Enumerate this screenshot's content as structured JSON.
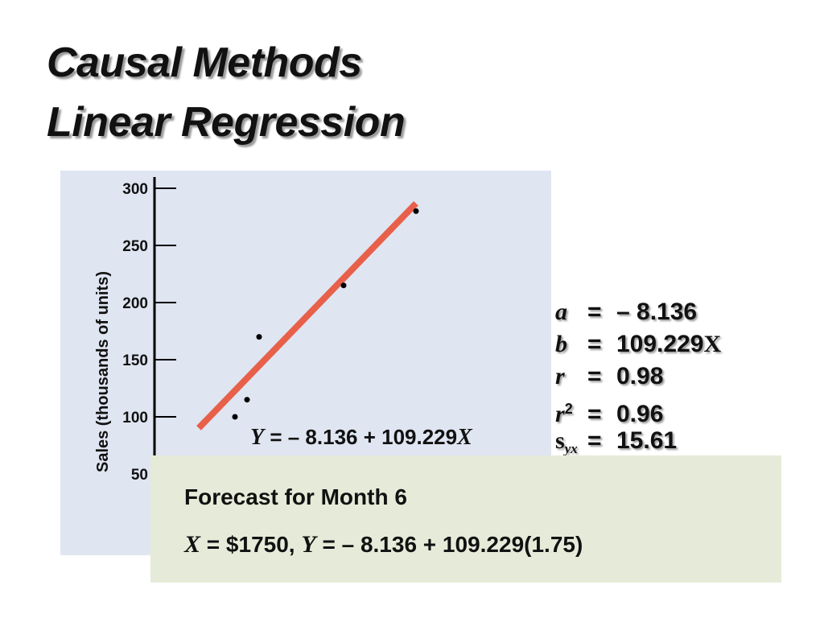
{
  "slide": {
    "title_line1": "Causal Methods",
    "title_line2": "Linear Regression"
  },
  "chart_data": {
    "type": "scatter",
    "ylabel": "Sales (thousands of units)",
    "yticks": [
      300,
      250,
      200,
      150,
      100,
      50
    ],
    "ylim": [
      50,
      300
    ],
    "points": [
      {
        "x": 1.2,
        "y": 100
      },
      {
        "x": 1.3,
        "y": 115
      },
      {
        "x": 1.4,
        "y": 170
      },
      {
        "x": 2.1,
        "y": 215
      },
      {
        "x": 2.7,
        "y": 280
      }
    ],
    "regression": {
      "intercept": -8.136,
      "slope": 109.229,
      "x_range": [
        0.9,
        2.7
      ]
    },
    "equation": {
      "y_var": "Y",
      "rhs": " = – 8.136 + 109.229",
      "x_var": "X"
    },
    "colors": {
      "panel": "#dfe5f1",
      "line": "#e8604a",
      "axis": "#000000"
    },
    "grid": false
  },
  "stats": {
    "a": {
      "sym": "a",
      "eq": "=",
      "val": "– 8.136"
    },
    "b": {
      "sym": "b",
      "eq": "=",
      "val": "109.229",
      "suffix": "X"
    },
    "r": {
      "sym": "r",
      "eq": "=",
      "val": "0.98"
    },
    "r2": {
      "sym": "r",
      "sup": "2",
      "eq": "=",
      "val": "0.96"
    },
    "syx": {
      "sym": "s",
      "sub": "yx",
      "eq": "=",
      "val": "15.61"
    }
  },
  "forecast": {
    "title": "Forecast for Month 6",
    "x_var": "X",
    "part1": " = $1750, ",
    "y_var": "Y",
    "part2": " = – 8.136 + 109.229(1.75)"
  }
}
